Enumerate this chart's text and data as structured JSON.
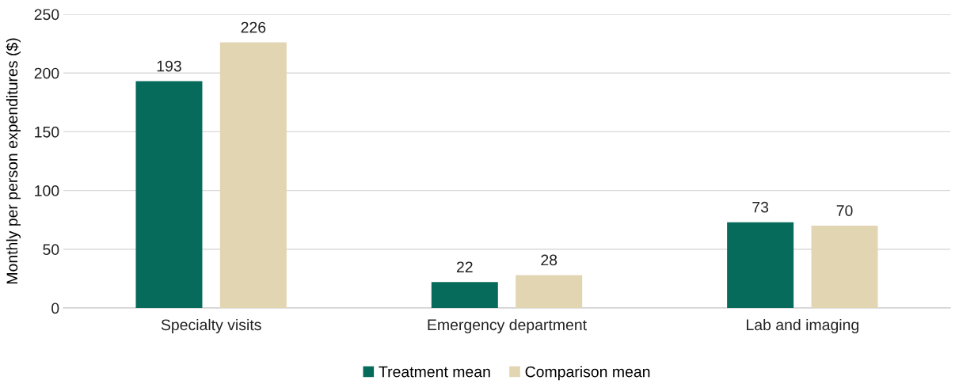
{
  "chart_data": {
    "type": "bar",
    "ylabel": "Monthly per person expenditures ($)",
    "categories": [
      "Specialty visits",
      "Emergency department",
      "Lab and imaging"
    ],
    "series": [
      {
        "name": "Treatment mean",
        "color": "#066b5b",
        "values": [
          193,
          22,
          73
        ]
      },
      {
        "name": "Comparison mean",
        "color": "#e2d5b2",
        "values": [
          226,
          28,
          70
        ]
      }
    ],
    "ylim": [
      0,
      250
    ],
    "yticks": [
      0,
      50,
      100,
      150,
      200,
      250
    ],
    "grid": "y",
    "legend": "bottom",
    "data_labels": true
  }
}
